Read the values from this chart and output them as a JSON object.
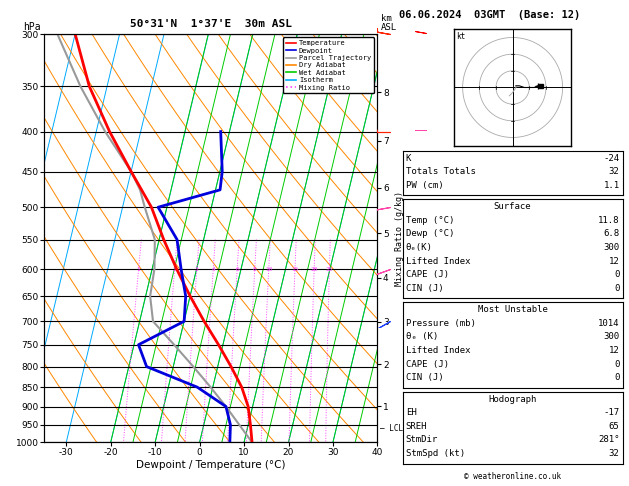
{
  "title_left": "50°31'N  1°37'E  30m ASL",
  "title_right": "06.06.2024  03GMT  (Base: 12)",
  "xlabel": "Dewpoint / Temperature (°C)",
  "ylabel_left": "hPa",
  "ylabel_right_km": "km\nASL",
  "ylabel_mix": "Mixing Ratio (g/kg)",
  "pressure_levels": [
    300,
    350,
    400,
    450,
    500,
    550,
    600,
    650,
    700,
    750,
    800,
    850,
    900,
    950,
    1000
  ],
  "temp_line": {
    "pressure": [
      1000,
      950,
      900,
      850,
      800,
      750,
      700,
      650,
      600,
      550,
      500,
      450,
      400,
      350,
      300
    ],
    "temp": [
      11.8,
      10.5,
      9.0,
      6.5,
      3.0,
      -1.0,
      -5.5,
      -10.0,
      -14.5,
      -19.0,
      -23.5,
      -30.0,
      -37.0,
      -44.0,
      -50.0
    ],
    "color": "#ff0000",
    "lw": 2.0
  },
  "dewp_line": {
    "pressure": [
      1000,
      950,
      900,
      850,
      800,
      750,
      700,
      650,
      600,
      550,
      500,
      475,
      450,
      400
    ],
    "temp": [
      6.8,
      6.0,
      4.0,
      -3.5,
      -16.0,
      -19.0,
      -10.0,
      -11.0,
      -13.5,
      -16.0,
      -22.0,
      -9.0,
      -9.5,
      -12.0
    ],
    "color": "#0000dd",
    "lw": 2.0
  },
  "parcel_line": {
    "pressure": [
      1000,
      950,
      900,
      850,
      800,
      750,
      700,
      650,
      600,
      550,
      500,
      475,
      450,
      400,
      350,
      300
    ],
    "temp": [
      11.8,
      8.0,
      4.0,
      -0.5,
      -5.5,
      -11.0,
      -17.0,
      -19.0,
      -19.5,
      -21.0,
      -25.0,
      -27.0,
      -30.0,
      -38.0,
      -46.0,
      -54.0
    ],
    "color": "#999999",
    "lw": 1.5
  },
  "skew_factor": 22.0,
  "p_ref": 1000,
  "t_min": -35,
  "t_max": 40,
  "isotherm_color": "#00aaff",
  "isotherm_lw": 0.7,
  "dry_adiabat_color": "#ff8800",
  "dry_adiabat_lw": 0.7,
  "wet_adiabat_color": "#00cc00",
  "wet_adiabat_lw": 0.7,
  "mix_ratio_color": "#ff44ff",
  "mix_ratio_lw": 0.7,
  "mix_ratio_values": [
    1,
    2,
    3,
    4,
    6,
    8,
    10,
    15,
    20,
    25
  ],
  "background_color": "#ffffff",
  "stats": {
    "K": -24,
    "Totals_Totals": 32,
    "PW_cm": 1.1,
    "Surface_Temp": 11.8,
    "Surface_Dewp": 6.8,
    "Surface_ThetaE": 300,
    "Surface_LI": 12,
    "Surface_CAPE": 0,
    "Surface_CIN": 0,
    "MU_Pressure": 1014,
    "MU_ThetaE": 300,
    "MU_LI": 12,
    "MU_CAPE": 0,
    "MU_CIN": 0,
    "EH": -17,
    "SREH": 65,
    "StmDir": 281,
    "StmSpd": 32
  },
  "lcl_pressure": 960,
  "legend_entries": [
    "Temperature",
    "Dewpoint",
    "Parcel Trajectory",
    "Dry Adiabat",
    "Wet Adiabat",
    "Isotherm",
    "Mixing Ratio"
  ],
  "legend_colors": [
    "#ff0000",
    "#0000dd",
    "#999999",
    "#ff8800",
    "#00cc00",
    "#00aaff",
    "#ff44ff"
  ],
  "legend_styles": [
    "-",
    "-",
    "-",
    "-",
    "-",
    "-",
    ":"
  ],
  "km_to_p": {
    "0": 1013,
    "1": 899,
    "2": 795,
    "3": 701,
    "4": 616,
    "5": 540,
    "6": 472,
    "7": 411,
    "8": 356
  },
  "wind_barb_pressures": [
    300,
    400,
    500,
    600,
    700
  ],
  "wind_barb_spd_kts": [
    30,
    25,
    20,
    15,
    10
  ],
  "wind_barb_dir_deg": [
    280,
    270,
    260,
    250,
    240
  ]
}
